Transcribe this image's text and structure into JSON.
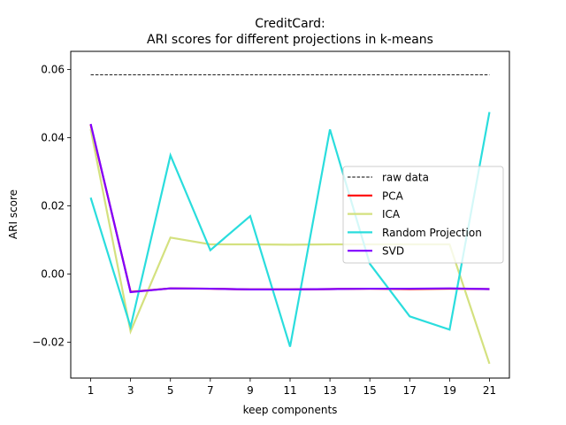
{
  "chart_data": {
    "type": "line",
    "title_line1": "CreditCard:",
    "title_line2": "ARI scores for different projections in k-means",
    "xlabel": "keep components",
    "ylabel": "ARI score",
    "x": [
      1,
      3,
      5,
      7,
      9,
      11,
      13,
      15,
      17,
      19,
      21
    ],
    "xticks": [
      "1",
      "3",
      "5",
      "7",
      "9",
      "11",
      "13",
      "15",
      "17",
      "19",
      "21"
    ],
    "yticks": [
      -0.02,
      0.0,
      0.02,
      0.04,
      0.06
    ],
    "ytick_labels": [
      "−0.02",
      "0.00",
      "0.02",
      "0.04",
      "0.06"
    ],
    "xlim": [
      0.0,
      22.0
    ],
    "ylim": [
      -0.0305,
      0.0653
    ],
    "grid": false,
    "legend_position": "center-right",
    "series": [
      {
        "name": "raw data",
        "style": "dashed",
        "color": "#000000",
        "values": [
          0.0584,
          0.0584,
          0.0584,
          0.0584,
          0.0584,
          0.0584,
          0.0584,
          0.0584,
          0.0584,
          0.0584,
          0.0584
        ]
      },
      {
        "name": "PCA",
        "style": "solid",
        "color": "#ff0000",
        "values": [
          0.0438,
          -0.0052,
          -0.0042,
          -0.0043,
          -0.0045,
          -0.0045,
          -0.0044,
          -0.0043,
          -0.0044,
          -0.0043,
          -0.0044
        ]
      },
      {
        "name": "ICA",
        "style": "solid",
        "color": "#d4e17f",
        "values": [
          0.0425,
          -0.0168,
          0.0107,
          0.0087,
          0.0087,
          0.0086,
          0.0087,
          0.0087,
          0.0087,
          0.0087,
          -0.0263
        ]
      },
      {
        "name": "Random Projection",
        "style": "solid",
        "color": "#2adddd",
        "values": [
          0.0224,
          -0.0155,
          0.0348,
          0.007,
          0.017,
          -0.0213,
          0.0424,
          0.003,
          -0.0124,
          -0.0163,
          0.0475
        ]
      },
      {
        "name": "SVD",
        "style": "solid",
        "color": "#8000ff",
        "values": [
          0.044,
          -0.0053,
          -0.0042,
          -0.0043,
          -0.0045,
          -0.0045,
          -0.0044,
          -0.0043,
          -0.0043,
          -0.0042,
          -0.0044
        ]
      }
    ]
  }
}
